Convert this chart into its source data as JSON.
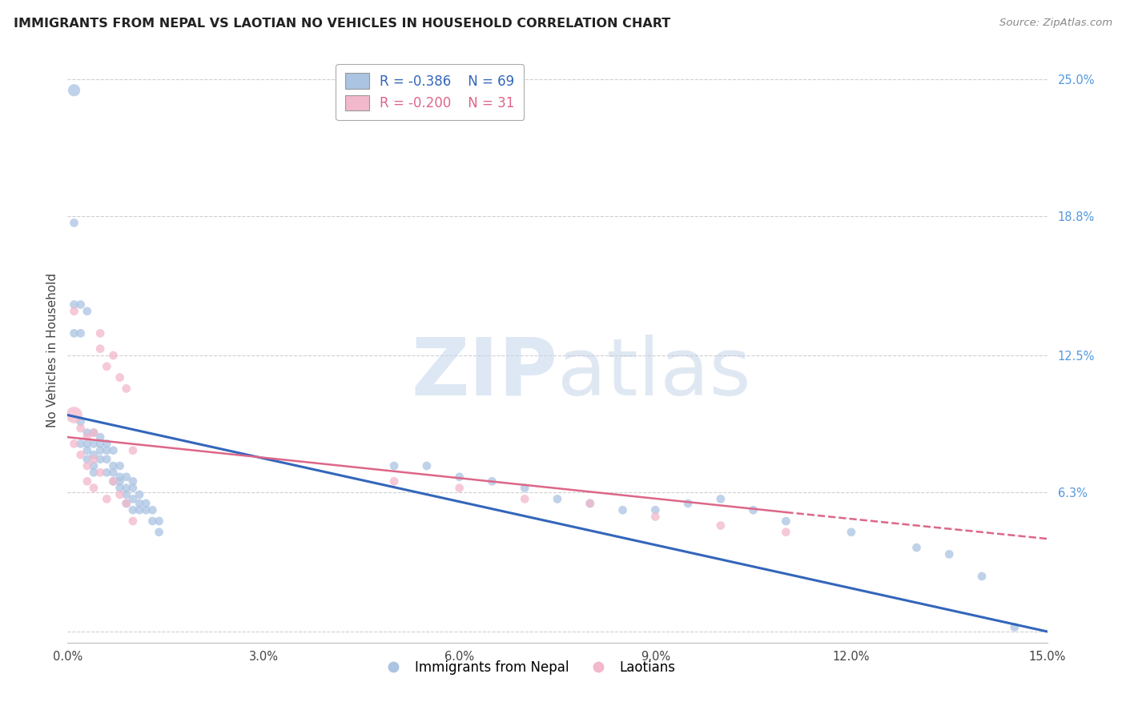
{
  "title": "IMMIGRANTS FROM NEPAL VS LAOTIAN NO VEHICLES IN HOUSEHOLD CORRELATION CHART",
  "source": "Source: ZipAtlas.com",
  "ylabel": "No Vehicles in Household",
  "xlabel_blue": "Immigrants from Nepal",
  "xlabel_pink": "Laotians",
  "legend_blue_r": "-0.386",
  "legend_blue_n": "69",
  "legend_pink_r": "-0.200",
  "legend_pink_n": "31",
  "xlim": [
    0.0,
    0.15
  ],
  "ylim": [
    -0.005,
    0.26
  ],
  "xticks": [
    0.0,
    0.03,
    0.06,
    0.09,
    0.12,
    0.15
  ],
  "xtick_labels": [
    "0.0%",
    "3.0%",
    "6.0%",
    "9.0%",
    "12.0%",
    "15.0%"
  ],
  "ytick_labels_right": [
    "25.0%",
    "18.8%",
    "12.5%",
    "6.3%"
  ],
  "ytick_positions_right": [
    0.25,
    0.188,
    0.125,
    0.063
  ],
  "gridline_y": [
    0.25,
    0.188,
    0.125,
    0.063,
    0.0
  ],
  "blue_color": "#aac4e2",
  "pink_color": "#f2b8cb",
  "blue_line_color": "#3366bb",
  "pink_line_color": "#dd6688",
  "blue_x": [
    0.001,
    0.002,
    0.002,
    0.003,
    0.003,
    0.003,
    0.003,
    0.004,
    0.004,
    0.004,
    0.004,
    0.004,
    0.005,
    0.005,
    0.005,
    0.005,
    0.006,
    0.006,
    0.006,
    0.006,
    0.007,
    0.007,
    0.007,
    0.007,
    0.008,
    0.008,
    0.008,
    0.008,
    0.009,
    0.009,
    0.009,
    0.009,
    0.01,
    0.01,
    0.01,
    0.01,
    0.011,
    0.011,
    0.011,
    0.012,
    0.012,
    0.013,
    0.013,
    0.014,
    0.014,
    0.05,
    0.055,
    0.06,
    0.065,
    0.07,
    0.075,
    0.08,
    0.085,
    0.09,
    0.095,
    0.1,
    0.105,
    0.11,
    0.12,
    0.13,
    0.135,
    0.14,
    0.001,
    0.001,
    0.001,
    0.002,
    0.002,
    0.003,
    0.145
  ],
  "blue_y": [
    0.245,
    0.095,
    0.085,
    0.09,
    0.085,
    0.082,
    0.078,
    0.09,
    0.085,
    0.08,
    0.075,
    0.072,
    0.088,
    0.085,
    0.082,
    0.078,
    0.085,
    0.082,
    0.078,
    0.072,
    0.082,
    0.075,
    0.072,
    0.068,
    0.075,
    0.07,
    0.068,
    0.065,
    0.07,
    0.065,
    0.062,
    0.058,
    0.068,
    0.065,
    0.06,
    0.055,
    0.062,
    0.058,
    0.055,
    0.058,
    0.055,
    0.055,
    0.05,
    0.05,
    0.045,
    0.075,
    0.075,
    0.07,
    0.068,
    0.065,
    0.06,
    0.058,
    0.055,
    0.055,
    0.058,
    0.06,
    0.055,
    0.05,
    0.045,
    0.038,
    0.035,
    0.025,
    0.185,
    0.148,
    0.135,
    0.148,
    0.135,
    0.145,
    0.002
  ],
  "blue_sizes": [
    120,
    60,
    60,
    60,
    60,
    60,
    60,
    60,
    60,
    60,
    60,
    60,
    60,
    60,
    60,
    60,
    60,
    60,
    60,
    60,
    60,
    60,
    60,
    60,
    60,
    60,
    60,
    60,
    60,
    60,
    60,
    60,
    60,
    60,
    60,
    60,
    60,
    60,
    60,
    60,
    60,
    60,
    60,
    60,
    60,
    60,
    60,
    60,
    60,
    60,
    60,
    60,
    60,
    60,
    60,
    60,
    60,
    60,
    60,
    60,
    60,
    60,
    60,
    60,
    60,
    60,
    60,
    60,
    60
  ],
  "pink_x": [
    0.001,
    0.001,
    0.002,
    0.002,
    0.003,
    0.003,
    0.003,
    0.004,
    0.004,
    0.004,
    0.005,
    0.005,
    0.005,
    0.006,
    0.006,
    0.007,
    0.007,
    0.008,
    0.008,
    0.009,
    0.009,
    0.01,
    0.01,
    0.05,
    0.06,
    0.07,
    0.08,
    0.09,
    0.1,
    0.11,
    0.001
  ],
  "pink_y": [
    0.098,
    0.085,
    0.092,
    0.08,
    0.088,
    0.075,
    0.068,
    0.09,
    0.078,
    0.065,
    0.135,
    0.128,
    0.072,
    0.12,
    0.06,
    0.125,
    0.068,
    0.115,
    0.062,
    0.11,
    0.058,
    0.082,
    0.05,
    0.068,
    0.065,
    0.06,
    0.058,
    0.052,
    0.048,
    0.045,
    0.145
  ],
  "pink_sizes": [
    220,
    60,
    60,
    60,
    60,
    60,
    60,
    60,
    60,
    60,
    60,
    60,
    60,
    60,
    60,
    60,
    60,
    60,
    60,
    60,
    60,
    60,
    60,
    60,
    60,
    60,
    60,
    60,
    60,
    60,
    60
  ],
  "watermark_zip": "ZIP",
  "watermark_atlas": "atlas",
  "blue_line_x0": 0.0,
  "blue_line_x1": 0.15,
  "blue_line_y0": 0.098,
  "blue_line_y1": 0.0,
  "pink_line_x0": 0.0,
  "pink_line_x1": 0.15,
  "pink_line_y0": 0.088,
  "pink_line_y1": 0.042,
  "pink_line_solid_x1": 0.11,
  "pink_line_solid_y1": 0.054
}
